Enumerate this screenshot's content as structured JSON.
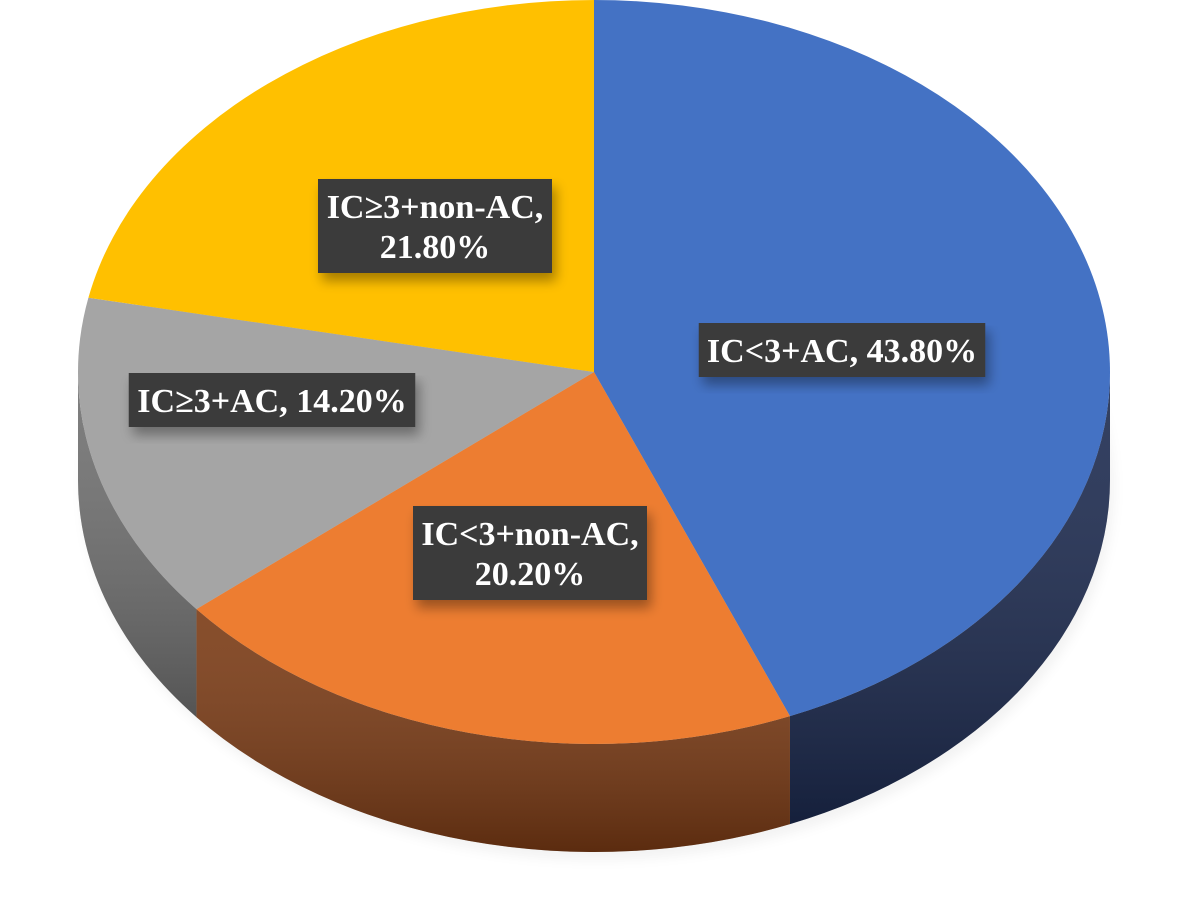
{
  "chart_data": {
    "type": "pie",
    "title": "",
    "style": "3d",
    "slices": [
      {
        "label": "IC<3+AC",
        "value": 43.8,
        "value_text": "43.80%",
        "color": "#4472C4",
        "side_color": "#1C2A4F",
        "label_lines": [
          "IC<3+AC, 43.80%"
        ]
      },
      {
        "label": "IC<3+non-AC",
        "value": 20.2,
        "value_text": "20.20%",
        "color": "#ED7D31",
        "side_color": "#7A3A14",
        "label_lines": [
          "IC<3+non-AC,",
          "20.20%"
        ]
      },
      {
        "label": "IC≥3+AC",
        "value": 14.2,
        "value_text": "14.20%",
        "color": "#A5A5A5",
        "side_color": "#707070",
        "label_lines": [
          "IC≥3+AC, 14.20%"
        ]
      },
      {
        "label": "IC≥3+non-AC",
        "value": 21.8,
        "value_text": "21.80%",
        "color": "#FFC000",
        "side_color": "#9A7400",
        "label_lines": [
          "IC≥3+non-AC,",
          "21.80%"
        ]
      }
    ]
  }
}
